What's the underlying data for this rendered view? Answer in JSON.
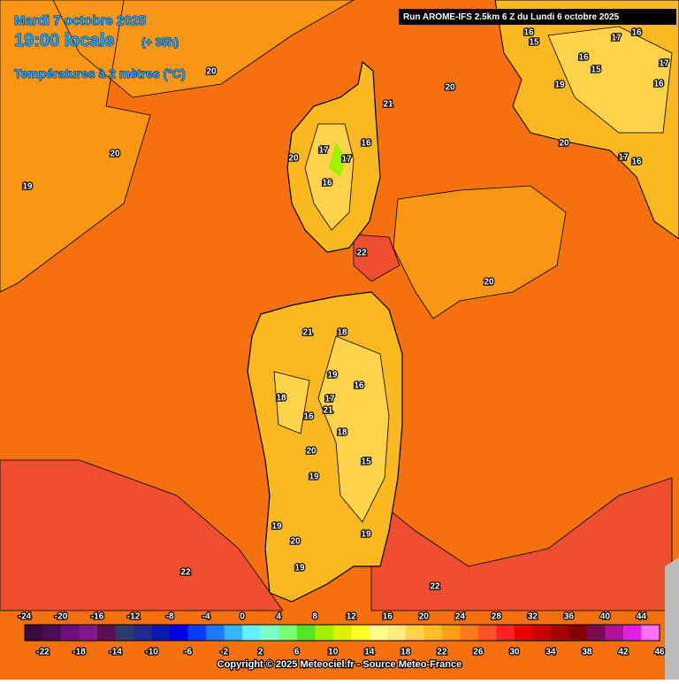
{
  "header": {
    "date": "Mardi 7 octobre 2025",
    "time": "19:00 locale",
    "lead": "(+ 35h)",
    "variable": "Températures à 2 mètres (°C)",
    "run": "Run AROME-IFS 2.5km 6 Z du Lundi 6 octobre 2025"
  },
  "contour_labels": [
    20,
    19,
    20,
    21,
    20,
    22,
    20,
    20,
    16,
    15,
    17,
    16,
    17,
    19,
    16,
    15,
    16,
    17,
    16,
    20,
    17,
    16,
    17,
    16,
    21,
    18,
    19,
    16,
    18,
    17,
    16,
    21,
    18,
    20,
    19,
    15,
    19,
    20,
    19,
    19,
    22,
    22
  ],
  "legend": {
    "top_labels": [
      -24,
      -20,
      -16,
      -12,
      -8,
      -4,
      0,
      4,
      8,
      12,
      16,
      20,
      24,
      28,
      32,
      36,
      40,
      44
    ],
    "bottom_labels": [
      -22,
      -18,
      -14,
      -10,
      -6,
      -2,
      2,
      6,
      10,
      14,
      18,
      22,
      26,
      30,
      34,
      38,
      42,
      46
    ],
    "colors": [
      "#3b0a3f",
      "#4e0b5a",
      "#6a0f80",
      "#801a8c",
      "#5a1050",
      "#2a3a6a",
      "#1e2a8c",
      "#0a1ab0",
      "#0000e0",
      "#0a3cff",
      "#1e78ff",
      "#32b4ff",
      "#64f0ff",
      "#7affc8",
      "#78ff78",
      "#50e628",
      "#a0f000",
      "#dcf000",
      "#ffff28",
      "#ffff8c",
      "#ffeb82",
      "#ffd24b",
      "#ffbe28",
      "#ffa014",
      "#ff7a1e",
      "#ff5028",
      "#ff2020",
      "#e60000",
      "#c80000",
      "#a50000",
      "#870000",
      "#7a0a50",
      "#b0109a",
      "#e020e0",
      "#ff70ff"
    ]
  },
  "copyright": "Copyright © 2025 Meteociel.fr - Source Meteo-France"
}
